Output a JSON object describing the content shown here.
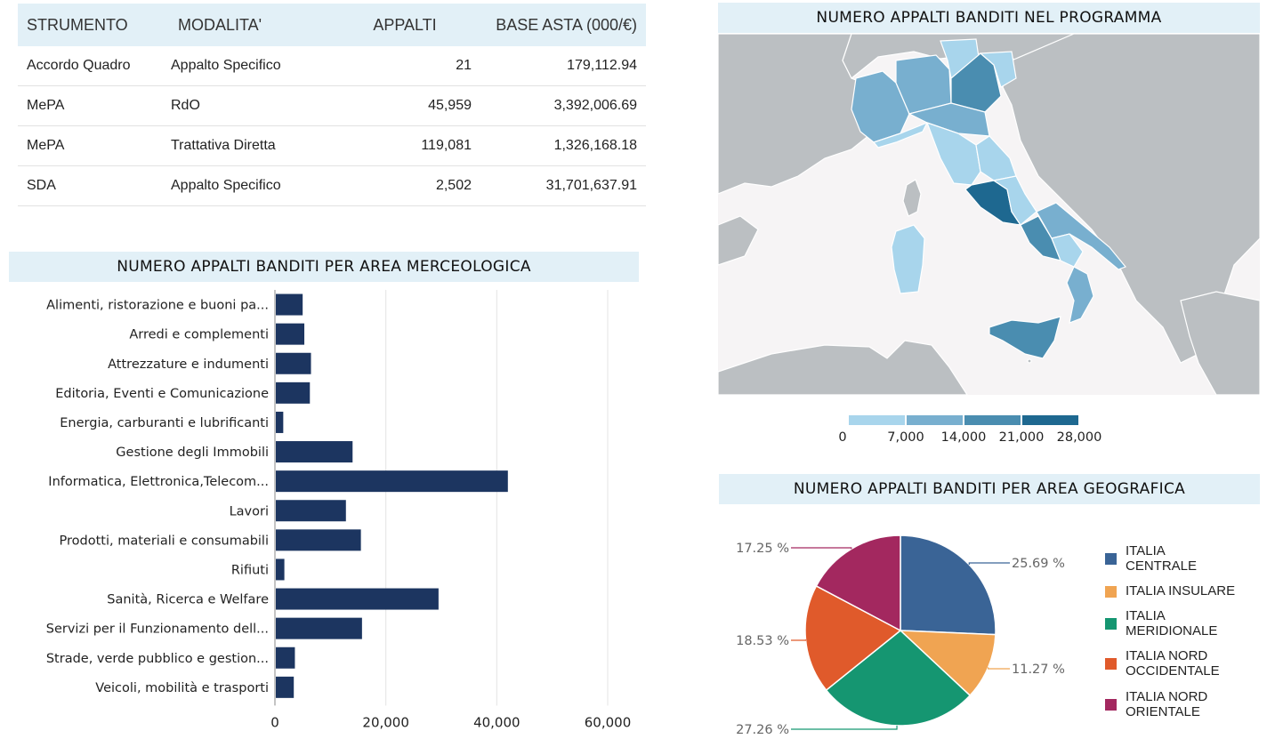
{
  "table": {
    "headers": [
      "STRUMENTO",
      "MODALITA'",
      "APPALTI",
      "BASE ASTA (000/€)"
    ],
    "rows": [
      [
        "Accordo Quadro",
        "Appalto Specifico",
        "21",
        "179,112.94"
      ],
      [
        "MePA",
        "RdO",
        "45,959",
        "3,392,006.69"
      ],
      [
        "MePA",
        "Trattativa Diretta",
        "119,081",
        "1,326,168.18"
      ],
      [
        "SDA",
        "Appalto Specifico",
        "2,502",
        "31,701,637.91"
      ]
    ]
  },
  "bar_panel": {
    "title": "NUMERO APPALTI BANDITI PER AREA MERCEOLOGICA"
  },
  "map_panel": {
    "title": "NUMERO APPALTI BANDITI NEL PROGRAMMA",
    "legend_labels": [
      "0",
      "7,000",
      "14,000",
      "21,000",
      "28,000"
    ],
    "legend_colors": [
      "#a8d5ec",
      "#78afcf",
      "#4a8db0",
      "#1e6890"
    ]
  },
  "pie_panel": {
    "title": "NUMERO APPALTI BANDITI PER AREA GEOGRAFICA"
  },
  "chart_data": [
    {
      "type": "bar",
      "orientation": "horizontal",
      "categories": [
        "Alimenti, ristorazione e buoni pa...",
        "Arredi e complementi",
        "Attrezzature e indumenti",
        "Editoria, Eventi e Comunicazione",
        "Energia, carburanti e lubrificanti",
        "Gestione degli Immobili",
        "Informatica, Elettronica,Telecom...",
        "Lavori",
        "Prodotti, materiali e consumabili",
        "Rifiuti",
        "Sanità, Ricerca e Welfare",
        "Servizi per il Funzionamento dell...",
        "Strade, verde pubblico e gestion...",
        "Veicoli, mobilità e trasporti"
      ],
      "values": [
        5000,
        5300,
        6500,
        6300,
        1500,
        14000,
        42000,
        12800,
        15500,
        1700,
        29500,
        15700,
        3600,
        3400
      ],
      "xticks": [
        "0",
        "20,000",
        "40,000",
        "60,000"
      ],
      "xlim": [
        0,
        60000
      ],
      "grid": true,
      "color": "#1c3560"
    },
    {
      "type": "pie",
      "labels": [
        "ITALIA CENTRALE",
        "ITALIA INSULARE",
        "ITALIA MERIDIONALE",
        "ITALIA NORD OCCIDENTALE",
        "ITALIA NORD ORIENTALE"
      ],
      "values": [
        25.69,
        11.27,
        27.26,
        18.53,
        17.25
      ],
      "value_labels": [
        "25.69 %",
        "11.27 %",
        "27.26 %",
        "18.53 %",
        "17.25 %"
      ],
      "colors": [
        "#3a6496",
        "#f0a452",
        "#159671",
        "#e05a2b",
        "#a3285f"
      ],
      "legend": "right"
    }
  ]
}
